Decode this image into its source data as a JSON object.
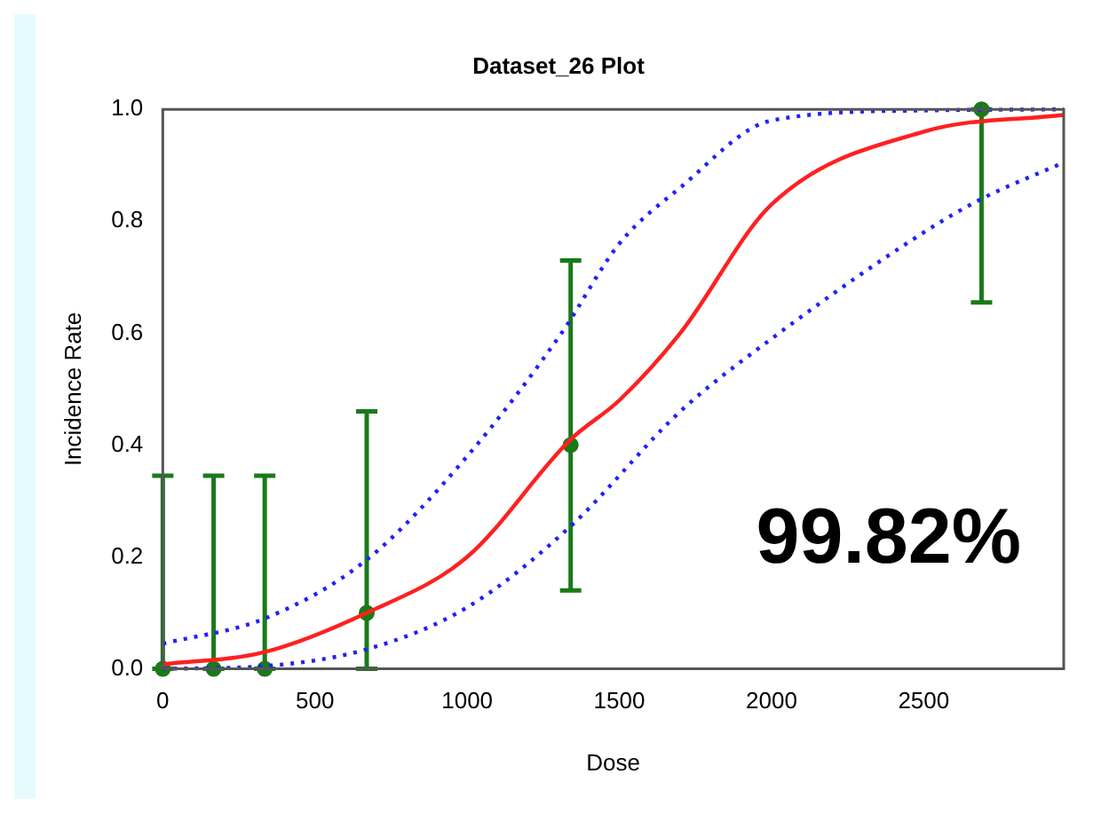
{
  "chart_data": {
    "type": "line",
    "title": "Dataset_26 Plot",
    "xlabel": "Dose",
    "ylabel": "Incidence Rate",
    "xlim": [
      0,
      2960
    ],
    "xticks": [
      0,
      500,
      {
        "value": 1000,
        "label": "1000"
      },
      {
        "value": 1500,
        "label": "1500"
      },
      {
        "value": 2000,
        "label": "2000"
      },
      {
        "value": 2500,
        "label": "2500"
      }
    ],
    "ylim": [
      0,
      1
    ],
    "yticks": [
      {
        "value": 0,
        "label": "0.0"
      },
      0.2,
      0.4,
      0.6,
      0.8,
      {
        "value": 1,
        "label": "1.0"
      }
    ],
    "grid": false,
    "legend": false,
    "annotations": [
      "99.82%"
    ],
    "series": [
      {
        "color": "#ff2020",
        "line_style": "solid",
        "marker": "none",
        "x": [
          0,
          335,
          670,
          1000,
          1340,
          1500,
          1700,
          2000,
          2500,
          2960
        ],
        "values": [
          0.008,
          0.03,
          0.1,
          0.2,
          0.41,
          0.48,
          0.6,
          0.83,
          0.96,
          0.99
        ]
      },
      {
        "color": "#2020ff",
        "line_style": "dotted",
        "marker": "none",
        "x": [
          0,
          335,
          670,
          1000,
          1310,
          1500,
          1700,
          2000,
          2500,
          2960
        ],
        "values": [
          0.045,
          0.09,
          0.195,
          0.38,
          0.6,
          0.76,
          0.86,
          0.98,
          0.998,
          1
        ]
      },
      {
        "color": "#2020ff",
        "line_style": "dotted",
        "marker": "none",
        "x": [
          0,
          335,
          670,
          1000,
          1340,
          1700,
          2000,
          2500,
          2690,
          2960
        ],
        "values": [
          0,
          0.005,
          0.035,
          0.11,
          0.255,
          0.46,
          0.59,
          0.78,
          0.84,
          0.905
        ]
      },
      {
        "type": "scatter",
        "color": "#1a7a1a",
        "marker": "circle",
        "x": [
          0,
          167,
          335,
          670,
          1340,
          2690
        ],
        "values": [
          0,
          0,
          0,
          0.1,
          0.4,
          1
        ],
        "errors": [
          [
            0,
            0.345
          ],
          [
            0,
            0.345
          ],
          [
            0,
            0.345
          ],
          [
            0,
            0.46
          ],
          [
            0.14,
            0.73
          ],
          [
            0.655,
            1
          ]
        ]
      }
    ]
  }
}
